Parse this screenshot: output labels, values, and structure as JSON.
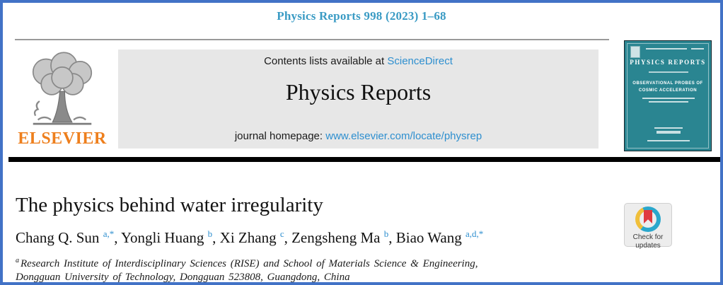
{
  "colors": {
    "page_border": "#4272c6",
    "citation_teal": "#3a9bc4",
    "link_blue": "#2e8fcf",
    "elsevier_orange": "#ee7f1d",
    "cover_teal": "#2a8591",
    "crossmark_blue": "#2aa7cc",
    "crossmark_yellow": "#f0bf3a",
    "crossmark_red": "#e03a3f",
    "header_box_gray": "#e7e7e7"
  },
  "masthead": {
    "citation": "Physics Reports 998 (2023) 1–68"
  },
  "header_box": {
    "contents_prefix": "Contents lists available at ",
    "sciencedirect_link": "ScienceDirect",
    "journal_title": "Physics Reports",
    "homepage_prefix": "journal homepage: ",
    "homepage_link": "www.elsevier.com/locate/physrep"
  },
  "elsevier": {
    "wordmark": "ELSEVIER"
  },
  "journal_cover": {
    "masthead": "PHYSICS REPORTS",
    "feature_line1": "OBSERVATIONAL PROBES OF",
    "feature_line2": "COSMIC ACCELERATION"
  },
  "article": {
    "title": "The physics behind water irregularity",
    "authors": [
      {
        "name": "Chang Q. Sun",
        "sup": "a,*"
      },
      {
        "name": "Yongli Huang",
        "sup": "b"
      },
      {
        "name": "Xi Zhang",
        "sup": "c"
      },
      {
        "name": "Zengsheng Ma",
        "sup": "b"
      },
      {
        "name": "Biao Wang",
        "sup": "a,d,*"
      }
    ],
    "affiliation": {
      "sup": "a",
      "lines": [
        "Research Institute of Interdisciplinary Sciences (RISE) and School of Materials Science & Engineering,",
        "Dongguan University of Technology, Dongguan 523808, Guangdong, China"
      ]
    }
  },
  "crossmark": {
    "line1": "Check for",
    "line2": "updates"
  }
}
